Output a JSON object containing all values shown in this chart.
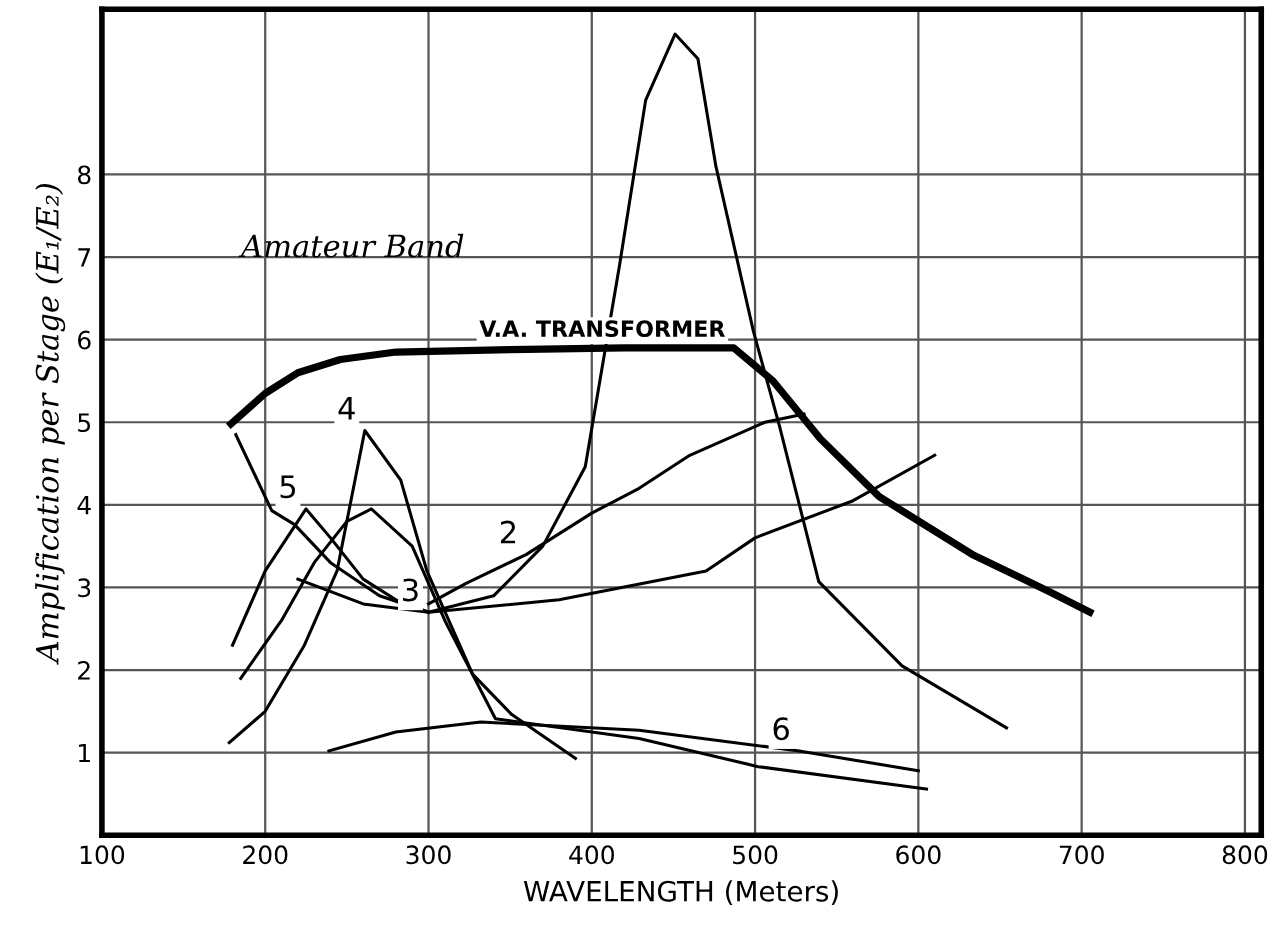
{
  "chart_data": {
    "type": "line",
    "xlabel": "WAVELENGTH (Meters)",
    "ylabel": "Amplification per Stage (E₁/E₂)",
    "xlim": [
      100,
      810
    ],
    "ylim": [
      0,
      10
    ],
    "xticks": [
      100,
      200,
      300,
      400,
      500,
      600,
      700,
      800
    ],
    "yticks": [
      1,
      2,
      3,
      4,
      5,
      6,
      7,
      8
    ],
    "grid": true,
    "legend": false,
    "marker": "none",
    "line_style": "solid",
    "annotations": [
      "Amateur Band"
    ],
    "series": [
      {
        "name": "V.A. TRANSFORMER",
        "color": "#000000",
        "x": [
          179,
          200,
          220,
          246,
          280,
          350,
          420,
          487,
          511,
          540,
          576,
          633,
          680,
          705
        ],
        "values": [
          4.98,
          5.35,
          5.6,
          5.76,
          5.85,
          5.88,
          5.9,
          5.9,
          5.5,
          4.8,
          4.1,
          3.4,
          2.95,
          2.7
        ]
      },
      {
        "color": "#000000",
        "x": [
          182,
          204,
          218,
          240,
          270,
          300,
          340,
          370,
          396,
          417,
          433,
          451,
          465,
          476,
          499,
          515,
          539,
          590,
          654
        ],
        "values": [
          4.85,
          3.93,
          3.76,
          3.3,
          2.9,
          2.7,
          2.9,
          3.5,
          4.46,
          6.9,
          8.9,
          9.7,
          9.4,
          8.1,
          6.1,
          4.95,
          3.07,
          2.05,
          1.3
        ]
      },
      {
        "name": "2",
        "color": "#000000",
        "x": [
          300,
          323,
          360,
          400,
          429,
          460,
          506,
          530
        ],
        "values": [
          2.8,
          3.05,
          3.4,
          3.9,
          4.2,
          4.6,
          5.0,
          5.1
        ]
      },
      {
        "name": "3",
        "color": "#000000",
        "x": [
          220,
          260,
          300,
          380,
          470,
          500,
          560,
          610
        ],
        "values": [
          3.1,
          2.8,
          2.7,
          2.85,
          3.2,
          3.6,
          4.05,
          4.6
        ]
      },
      {
        "name": "4",
        "color": "#000000",
        "x": [
          178,
          200,
          224,
          244,
          261,
          283,
          299,
          327,
          351,
          390
        ],
        "values": [
          1.12,
          1.5,
          2.3,
          3.2,
          4.9,
          4.3,
          3.2,
          1.95,
          1.46,
          0.93
        ]
      },
      {
        "name": "5",
        "color": "#000000",
        "x": [
          180,
          200,
          225,
          240,
          260,
          280,
          300
        ],
        "values": [
          2.3,
          3.2,
          3.95,
          3.6,
          3.1,
          2.85,
          2.7
        ]
      },
      {
        "color": "#000000",
        "x": [
          185,
          210,
          230,
          250,
          265,
          290,
          310,
          341,
          429,
          502,
          605
        ],
        "values": [
          1.9,
          2.6,
          3.3,
          3.8,
          3.95,
          3.5,
          2.6,
          1.41,
          1.17,
          0.83,
          0.56
        ]
      },
      {
        "name": "6",
        "color": "#000000",
        "x": [
          239,
          280,
          332,
          429,
          527,
          600
        ],
        "values": [
          1.02,
          1.25,
          1.37,
          1.27,
          1.02,
          0.78
        ]
      }
    ]
  }
}
